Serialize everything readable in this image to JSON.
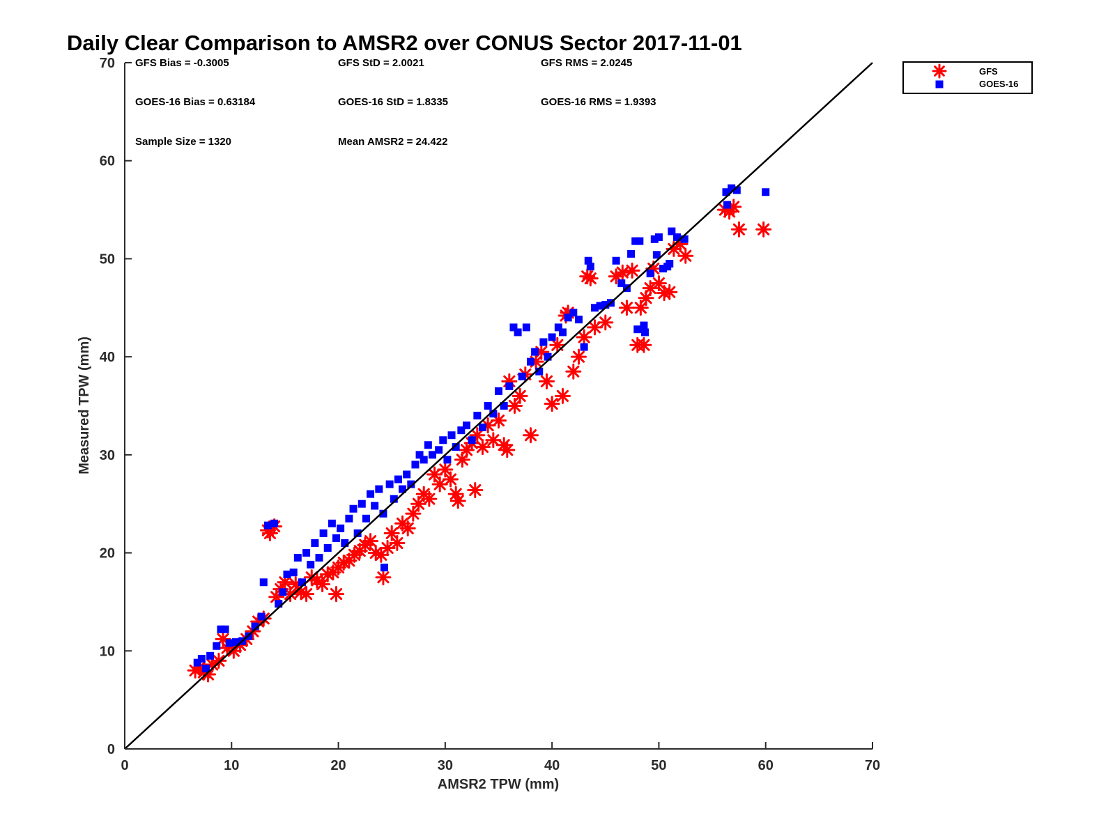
{
  "chart_data": {
    "type": "scatter",
    "title": "Daily Clear Comparison to AMSR2 over CONUS Sector 2017-11-01",
    "xlabel": "AMSR2 TPW (mm)",
    "ylabel": "Measured TPW (mm)",
    "xlim": [
      0,
      70
    ],
    "ylim": [
      0,
      70
    ],
    "xticks": [
      0,
      10,
      20,
      30,
      40,
      50,
      60,
      70
    ],
    "yticks": [
      0,
      10,
      20,
      30,
      40,
      50,
      60,
      70
    ],
    "grid": false,
    "legend_position": "outside-top-right",
    "reference_line": {
      "name": "one-to-one",
      "x": [
        0,
        70
      ],
      "y": [
        0,
        70
      ],
      "color": "#000000"
    },
    "stats": [
      {
        "label": "GFS Bias = -0.3005"
      },
      {
        "label": "GFS StD = 2.0021"
      },
      {
        "label": "GFS RMS = 2.0245"
      },
      {
        "label": "GOES-16 Bias = 0.63184"
      },
      {
        "label": "GOES-16 StD = 1.8335"
      },
      {
        "label": "GOES-16 RMS = 1.9393"
      },
      {
        "label": "Sample Size = 1320"
      },
      {
        "label": "Mean AMSR2 = 24.422"
      }
    ],
    "series": [
      {
        "name": "GFS",
        "marker": "asterisk",
        "color": "#ff0000",
        "points": [
          [
            6.6,
            8.0
          ],
          [
            7.0,
            8.3
          ],
          [
            7.4,
            7.8
          ],
          [
            7.8,
            7.6
          ],
          [
            8.2,
            8.6
          ],
          [
            8.8,
            9.0
          ],
          [
            9.2,
            11.2
          ],
          [
            9.6,
            10.3
          ],
          [
            10.2,
            10.0
          ],
          [
            10.8,
            10.6
          ],
          [
            11.4,
            11.2
          ],
          [
            12.0,
            12.0
          ],
          [
            12.5,
            13.0
          ],
          [
            13.0,
            13.3
          ],
          [
            13.4,
            22.3
          ],
          [
            13.6,
            22.0
          ],
          [
            14.0,
            22.7
          ],
          [
            14.2,
            15.5
          ],
          [
            14.6,
            16.3
          ],
          [
            15.0,
            17.0
          ],
          [
            15.5,
            15.8
          ],
          [
            16.0,
            16.8
          ],
          [
            16.5,
            16.0
          ],
          [
            17.0,
            15.8
          ],
          [
            17.5,
            17.5
          ],
          [
            18.0,
            17.2
          ],
          [
            18.5,
            16.8
          ],
          [
            19.0,
            17.8
          ],
          [
            19.5,
            18.0
          ],
          [
            20.0,
            18.5
          ],
          [
            19.8,
            15.8
          ],
          [
            20.5,
            19.0
          ],
          [
            21.0,
            19.2
          ],
          [
            21.5,
            19.8
          ],
          [
            22.0,
            20.2
          ],
          [
            22.5,
            20.8
          ],
          [
            23.0,
            21.2
          ],
          [
            23.5,
            20.0
          ],
          [
            24.0,
            19.8
          ],
          [
            24.2,
            17.5
          ],
          [
            24.6,
            20.5
          ],
          [
            25.0,
            22.0
          ],
          [
            25.5,
            21.0
          ],
          [
            26.0,
            23.0
          ],
          [
            26.5,
            22.5
          ],
          [
            27.0,
            24.0
          ],
          [
            27.5,
            25.0
          ],
          [
            28.0,
            26.0
          ],
          [
            28.5,
            25.5
          ],
          [
            29.0,
            28.0
          ],
          [
            29.5,
            27.0
          ],
          [
            30.0,
            28.5
          ],
          [
            30.5,
            27.5
          ],
          [
            31.0,
            26.0
          ],
          [
            31.2,
            25.3
          ],
          [
            31.6,
            29.5
          ],
          [
            32.0,
            30.5
          ],
          [
            32.5,
            31.2
          ],
          [
            32.8,
            26.4
          ],
          [
            33.0,
            32.0
          ],
          [
            33.5,
            30.8
          ],
          [
            34.0,
            33.0
          ],
          [
            34.5,
            31.5
          ],
          [
            35.0,
            33.5
          ],
          [
            35.5,
            31.0
          ],
          [
            35.8,
            30.5
          ],
          [
            36.0,
            37.5
          ],
          [
            36.5,
            35.0
          ],
          [
            37.0,
            36.0
          ],
          [
            37.5,
            38.2
          ],
          [
            38.0,
            32.0
          ],
          [
            38.5,
            39.5
          ],
          [
            39.0,
            40.5
          ],
          [
            39.5,
            37.5
          ],
          [
            40.0,
            35.2
          ],
          [
            40.5,
            41.2
          ],
          [
            41.0,
            36.0
          ],
          [
            41.3,
            44.2
          ],
          [
            41.5,
            44.5
          ],
          [
            42.0,
            38.5
          ],
          [
            42.5,
            40.0
          ],
          [
            43.0,
            42.0
          ],
          [
            43.3,
            48.2
          ],
          [
            43.6,
            48.0
          ],
          [
            44.0,
            43.0
          ],
          [
            45.0,
            43.5
          ],
          [
            46.0,
            48.2
          ],
          [
            46.6,
            48.6
          ],
          [
            47.0,
            45.0
          ],
          [
            47.5,
            48.8
          ],
          [
            48.0,
            41.2
          ],
          [
            48.3,
            45.0
          ],
          [
            48.6,
            41.2
          ],
          [
            48.8,
            46.0
          ],
          [
            49.2,
            47.0
          ],
          [
            49.5,
            49.0
          ],
          [
            50.0,
            47.5
          ],
          [
            50.5,
            46.5
          ],
          [
            51.0,
            46.6
          ],
          [
            51.4,
            51.0
          ],
          [
            52.0,
            51.5
          ],
          [
            52.5,
            50.3
          ],
          [
            56.2,
            55.0
          ],
          [
            56.6,
            54.8
          ],
          [
            57.0,
            55.3
          ],
          [
            57.5,
            53.0
          ],
          [
            59.8,
            53.0
          ]
        ]
      },
      {
        "name": "GOES-16",
        "marker": "square",
        "color": "#0000ff",
        "points": [
          [
            6.8,
            8.8
          ],
          [
            7.2,
            9.2
          ],
          [
            7.6,
            8.2
          ],
          [
            8.0,
            9.5
          ],
          [
            8.6,
            10.5
          ],
          [
            9.0,
            12.2
          ],
          [
            9.4,
            12.2
          ],
          [
            9.8,
            10.8
          ],
          [
            10.4,
            10.9
          ],
          [
            11.0,
            11.0
          ],
          [
            11.6,
            11.5
          ],
          [
            12.2,
            12.5
          ],
          [
            12.8,
            13.5
          ],
          [
            13.0,
            17.0
          ],
          [
            13.4,
            22.8
          ],
          [
            14.0,
            23.0
          ],
          [
            14.4,
            14.8
          ],
          [
            14.8,
            16.0
          ],
          [
            15.2,
            17.8
          ],
          [
            15.8,
            18.0
          ],
          [
            16.2,
            19.5
          ],
          [
            16.6,
            17.0
          ],
          [
            17.0,
            20.0
          ],
          [
            17.4,
            18.8
          ],
          [
            17.8,
            21.0
          ],
          [
            18.2,
            19.5
          ],
          [
            18.6,
            22.0
          ],
          [
            19.0,
            20.5
          ],
          [
            19.4,
            23.0
          ],
          [
            19.8,
            21.5
          ],
          [
            20.2,
            22.5
          ],
          [
            20.6,
            21.0
          ],
          [
            21.0,
            23.5
          ],
          [
            21.4,
            24.5
          ],
          [
            21.8,
            22.0
          ],
          [
            22.2,
            25.0
          ],
          [
            22.6,
            23.5
          ],
          [
            23.0,
            26.0
          ],
          [
            23.4,
            24.8
          ],
          [
            23.8,
            26.5
          ],
          [
            24.2,
            24.0
          ],
          [
            24.3,
            18.5
          ],
          [
            24.8,
            27.0
          ],
          [
            25.2,
            25.5
          ],
          [
            25.6,
            27.5
          ],
          [
            26.0,
            26.5
          ],
          [
            26.4,
            28.0
          ],
          [
            26.8,
            27.0
          ],
          [
            27.2,
            29.0
          ],
          [
            27.6,
            30.0
          ],
          [
            28.0,
            29.5
          ],
          [
            28.4,
            31.0
          ],
          [
            28.8,
            30.0
          ],
          [
            29.4,
            30.5
          ],
          [
            29.8,
            31.5
          ],
          [
            30.2,
            29.5
          ],
          [
            30.6,
            32.0
          ],
          [
            31.0,
            30.8
          ],
          [
            31.5,
            32.5
          ],
          [
            32.0,
            33.0
          ],
          [
            32.5,
            31.5
          ],
          [
            33.0,
            34.0
          ],
          [
            33.5,
            32.8
          ],
          [
            34.0,
            35.0
          ],
          [
            34.5,
            34.2
          ],
          [
            35.0,
            36.5
          ],
          [
            35.5,
            35.0
          ],
          [
            36.0,
            37.0
          ],
          [
            36.4,
            43.0
          ],
          [
            36.8,
            42.5
          ],
          [
            37.2,
            38.0
          ],
          [
            37.6,
            43.0
          ],
          [
            38.0,
            39.5
          ],
          [
            38.4,
            40.5
          ],
          [
            38.8,
            38.5
          ],
          [
            39.2,
            41.5
          ],
          [
            39.6,
            40.0
          ],
          [
            40.0,
            42.0
          ],
          [
            40.6,
            43.0
          ],
          [
            41.0,
            42.5
          ],
          [
            41.5,
            44.0
          ],
          [
            42.0,
            44.5
          ],
          [
            42.5,
            43.8
          ],
          [
            43.0,
            41.0
          ],
          [
            43.4,
            49.8
          ],
          [
            43.6,
            49.2
          ],
          [
            44.0,
            45.0
          ],
          [
            44.5,
            45.2
          ],
          [
            45.0,
            45.3
          ],
          [
            45.5,
            45.5
          ],
          [
            46.0,
            49.8
          ],
          [
            46.5,
            47.5
          ],
          [
            47.0,
            47.0
          ],
          [
            47.4,
            50.5
          ],
          [
            47.8,
            51.8
          ],
          [
            48.2,
            51.8
          ],
          [
            48.0,
            42.8
          ],
          [
            48.6,
            43.2
          ],
          [
            48.7,
            42.5
          ],
          [
            49.2,
            48.5
          ],
          [
            49.6,
            52.0
          ],
          [
            50.0,
            52.2
          ],
          [
            49.8,
            50.4
          ],
          [
            50.4,
            49.0
          ],
          [
            50.8,
            49.2
          ],
          [
            51.2,
            52.8
          ],
          [
            51.0,
            49.5
          ],
          [
            51.7,
            52.2
          ],
          [
            52.4,
            52.0
          ],
          [
            56.3,
            56.8
          ],
          [
            56.8,
            57.2
          ],
          [
            57.3,
            57.0
          ],
          [
            56.4,
            55.5
          ],
          [
            60.0,
            56.8
          ]
        ]
      }
    ]
  }
}
